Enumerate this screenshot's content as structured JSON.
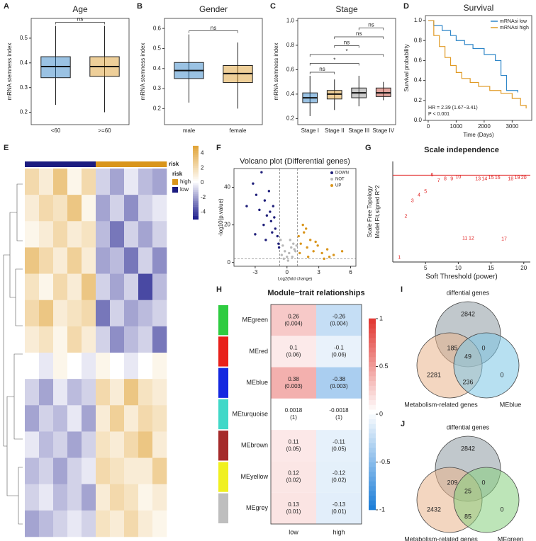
{
  "chart_data": [
    {
      "panel": "A",
      "type": "box",
      "title": "Age",
      "ylabel": "mRNA stemness index",
      "categories": [
        "<60",
        ">=60"
      ],
      "colors": [
        "#1f77c0",
        "#d9951c"
      ],
      "boxes": [
        {
          "min": 0.23,
          "q1": 0.34,
          "median": 0.385,
          "q3": 0.425,
          "max": 0.55
        },
        {
          "min": 0.2,
          "q1": 0.345,
          "median": 0.385,
          "q3": 0.425,
          "max": 0.55
        }
      ],
      "ylim": [
        0.15,
        0.58
      ],
      "yticks": [
        0.2,
        0.3,
        0.4,
        0.5
      ],
      "comparisons": [
        {
          "pair": [
            "<60",
            ">=60"
          ],
          "label": "ns"
        }
      ]
    },
    {
      "panel": "B",
      "type": "box",
      "title": "Gender",
      "ylabel": "mRNA stemness index",
      "categories": [
        "male",
        "female"
      ],
      "colors": [
        "#1f77c0",
        "#d9951c"
      ],
      "boxes": [
        {
          "min": 0.23,
          "q1": 0.35,
          "median": 0.39,
          "q3": 0.43,
          "max": 0.57
        },
        {
          "min": 0.2,
          "q1": 0.33,
          "median": 0.375,
          "q3": 0.415,
          "max": 0.53
        }
      ],
      "ylim": [
        0.12,
        0.65
      ],
      "yticks": [
        0.2,
        0.3,
        0.4,
        0.5,
        0.6
      ],
      "comparisons": [
        {
          "pair": [
            "male",
            "female"
          ],
          "label": "ns"
        }
      ]
    },
    {
      "panel": "C",
      "type": "box",
      "title": "Stage",
      "ylabel": "mRNA stemness index",
      "categories": [
        "Stage I",
        "Stage II",
        "Stage III",
        "Stage IV"
      ],
      "colors": [
        "#1f77c0",
        "#d9951c",
        "#8c8c8c",
        "#c0392b"
      ],
      "boxes": [
        {
          "min": 0.22,
          "q1": 0.33,
          "median": 0.37,
          "q3": 0.41,
          "max": 0.55
        },
        {
          "min": 0.27,
          "q1": 0.36,
          "median": 0.4,
          "q3": 0.43,
          "max": 0.52
        },
        {
          "min": 0.3,
          "q1": 0.37,
          "median": 0.41,
          "q3": 0.45,
          "max": 0.55
        },
        {
          "min": 0.35,
          "q1": 0.38,
          "median": 0.41,
          "q3": 0.45,
          "max": 0.5
        }
      ],
      "ylim": [
        0.15,
        1.02
      ],
      "yticks": [
        0.2,
        0.4,
        0.6,
        0.8,
        {
          "value": 1.0,
          "label": "1.0"
        }
      ],
      "comparisons": [
        {
          "pair": [
            "Stage I",
            "Stage II"
          ],
          "label": "ns"
        },
        {
          "pair": [
            "Stage I",
            "Stage III"
          ],
          "label": "*"
        },
        {
          "pair": [
            "Stage I",
            "Stage IV"
          ],
          "label": "*"
        },
        {
          "pair": [
            "Stage II",
            "Stage III"
          ],
          "label": "ns"
        },
        {
          "pair": [
            "Stage II",
            "Stage IV"
          ],
          "label": "ns"
        },
        {
          "pair": [
            "Stage III",
            "Stage IV"
          ],
          "label": "ns"
        }
      ]
    },
    {
      "panel": "D",
      "type": "survival",
      "title": "Survival",
      "xlabel": "Time (Days)",
      "ylabel": "Survival probability",
      "series": [
        {
          "name": "mRNAsi low",
          "color": "#2f86c8",
          "x": [
            0,
            200,
            500,
            800,
            1000,
            1300,
            1600,
            2000,
            2400,
            2600,
            2800,
            3200
          ],
          "values": [
            1,
            0.95,
            0.9,
            0.85,
            0.8,
            0.76,
            0.72,
            0.66,
            0.6,
            0.45,
            0.3,
            0.28
          ]
        },
        {
          "name": "mRNAsi high",
          "color": "#e09a25",
          "x": [
            0,
            200,
            400,
            600,
            800,
            1000,
            1200,
            1500,
            1800,
            2200,
            2600,
            3000,
            3300,
            3500
          ],
          "values": [
            1,
            0.85,
            0.74,
            0.63,
            0.55,
            0.48,
            0.42,
            0.38,
            0.34,
            0.3,
            0.27,
            0.22,
            0.15,
            0.12
          ]
        }
      ],
      "xlim": [
        -100,
        3700
      ],
      "xticks": [
        0,
        1000,
        2000,
        3000
      ],
      "ylim": [
        0,
        1.05
      ],
      "yticks": [
        {
          "value": 0,
          "label": "0.0"
        },
        0.2,
        0.4,
        0.6,
        0.8,
        {
          "value": 1,
          "label": "1.0"
        }
      ],
      "annotations": [
        "HR = 2.39 (1.67−3.41)",
        "P < 0.001"
      ]
    },
    {
      "panel": "E",
      "type": "heatmap",
      "legend_title": "risk",
      "legend": [
        {
          "name": "high",
          "color": "#d9951c"
        },
        {
          "name": "low",
          "color": "#1c1c80"
        }
      ],
      "risk": [
        "low",
        "low",
        "low",
        "low",
        "low",
        "high",
        "high",
        "high",
        "high",
        "high"
      ],
      "clim": [
        -5,
        5
      ],
      "colors": [
        "#1c1c8c",
        "#ffffff",
        "#e0a030"
      ],
      "colorbar_ticks": [
        4,
        2,
        0,
        -2,
        -4
      ],
      "values": [
        [
          2,
          1,
          3,
          0.5,
          2,
          -1,
          -2,
          -0.5,
          -1.5,
          -2
        ],
        [
          1,
          2,
          1.5,
          3,
          0.5,
          -2,
          -1,
          -2.5,
          -1,
          -0.5
        ],
        [
          0.5,
          1,
          2,
          1,
          1.5,
          -1.5,
          -3,
          -1,
          -2,
          -1
        ],
        [
          3,
          2,
          1,
          2.5,
          1,
          -2,
          -1.5,
          -3,
          -1,
          -2.5
        ],
        [
          1.5,
          0.5,
          2,
          1,
          3,
          -1,
          -2,
          -1,
          -4,
          -1.5
        ],
        [
          2,
          3,
          1,
          1.5,
          2,
          -3,
          -1,
          -2,
          -1.5,
          -1
        ],
        [
          1,
          1.5,
          0.5,
          2,
          1,
          -1,
          -2.5,
          -1.5,
          -1,
          -3
        ],
        [
          0,
          -0.5,
          0.5,
          0,
          -0.5,
          0.5,
          0,
          -0.5,
          0,
          0.5
        ],
        [
          -1,
          -2,
          -0.5,
          -1.5,
          -1,
          2,
          1,
          3,
          1.5,
          1
        ],
        [
          -2,
          -1,
          -1.5,
          -0.5,
          -2,
          1,
          2.5,
          1,
          2,
          1.5
        ],
        [
          -0.5,
          -1.5,
          -1,
          -2,
          -1,
          1.5,
          1,
          2,
          3,
          1
        ],
        [
          -1.5,
          -1,
          -2,
          -1,
          -0.5,
          2,
          1.5,
          1,
          1,
          2.5
        ],
        [
          -1,
          -0.5,
          -1.5,
          -1,
          -2,
          1,
          2,
          1.5,
          0.5,
          1
        ],
        [
          -2,
          -1.5,
          -1,
          -0.5,
          -1,
          1.5,
          1,
          2,
          1,
          0.5
        ]
      ]
    },
    {
      "panel": "F",
      "type": "volcano",
      "title": "Volcano plot (Differential genes)",
      "xlabel": "Log2(fold change)",
      "ylabel": "-log10(p.value)",
      "series": [
        {
          "name": "DOWN",
          "color": "#1f1f7a",
          "x": [
            -3.8,
            -3.2,
            -2.9,
            -2.6,
            -2.4,
            -2.1,
            -1.9,
            -1.7,
            -1.5,
            -1.3,
            -1.1,
            -0.9,
            -0.8,
            -2.2,
            -1.6,
            -1.2,
            -0.75,
            -3.0,
            -2.0,
            -1.4
          ],
          "values": [
            30,
            42,
            36,
            28,
            48,
            33,
            25,
            38,
            22,
            30,
            18,
            14,
            10,
            20,
            27,
            24,
            8,
            15,
            12,
            16
          ]
        },
        {
          "name": "NOT",
          "color": "#b8b8b8",
          "x": [
            -0.6,
            -0.4,
            -0.2,
            0,
            0.2,
            0.4,
            0.6,
            0.8,
            -0.3,
            0.1,
            0.5,
            -0.5,
            0.3,
            0.7,
            0.9
          ],
          "values": [
            12,
            9,
            6,
            3,
            5,
            8,
            10,
            6,
            2,
            1,
            3,
            4,
            12,
            7,
            9
          ]
        },
        {
          "name": "UP",
          "color": "#d9951c",
          "x": [
            1.1,
            1.3,
            1.6,
            1.9,
            2.2,
            2.5,
            2.9,
            3.3,
            3.8,
            4.4,
            5.2,
            1.5,
            2.0,
            2.7,
            3.5,
            1.2,
            4.0,
            1.8
          ],
          "values": [
            14,
            10,
            16,
            8,
            12,
            6,
            9,
            5,
            7,
            4,
            6,
            20,
            3,
            11,
            2,
            5,
            3,
            18
          ]
        }
      ],
      "xlim": [
        -5,
        6.5
      ],
      "xticks": [
        -3,
        0,
        3,
        6
      ],
      "ylim": [
        -2,
        50
      ],
      "yticks": [
        0,
        20,
        40
      ],
      "thresholds": {
        "x": [
          -0.7,
          1
        ],
        "y": 2
      }
    },
    {
      "panel": "G",
      "type": "scale",
      "title": "Scale independence",
      "xlabel": "Soft Threshold (power)",
      "ylabel": [
        "Scale Free Topology",
        "Model Fit,signed R^2"
      ],
      "color": "#e02020",
      "x": [
        1,
        2,
        3,
        4,
        5,
        6,
        7,
        8,
        9,
        10,
        11,
        12,
        13,
        14,
        15,
        16,
        17,
        18,
        19,
        20
      ],
      "values": [
        0.0,
        0.45,
        0.62,
        0.68,
        0.72,
        0.9,
        0.84,
        0.86,
        0.86,
        0.88,
        0.21,
        0.21,
        0.86,
        0.86,
        0.87,
        0.87,
        0.2,
        0.86,
        0.87,
        0.87
      ],
      "xlim": [
        0,
        21
      ],
      "xticks": [
        5,
        10,
        15,
        20
      ],
      "ylim": [
        -0.05,
        1.05
      ],
      "hline": 0.9
    },
    {
      "panel": "H",
      "type": "matrix",
      "title": "Module−trait relationships",
      "rows": [
        "MEgreen",
        "MEred",
        "MEblue",
        "MEturquoise",
        "MEbrown",
        "MEyellow",
        "MEgrey"
      ],
      "row_colors": [
        "#2ecc40",
        "#e8201a",
        "#1428e0",
        "#40d8c8",
        "#a52a2a",
        "#f0f020",
        "#bebebe"
      ],
      "columns": [
        "low",
        "high"
      ],
      "values": [
        [
          0.26,
          -0.26
        ],
        [
          0.1,
          -0.1
        ],
        [
          0.38,
          -0.38
        ],
        [
          0.0018,
          -0.0018
        ],
        [
          0.11,
          -0.11
        ],
        [
          0.12,
          -0.12
        ],
        [
          0.13,
          -0.13
        ]
      ],
      "p_values": [
        [
          0.004,
          0.004
        ],
        [
          0.06,
          0.06
        ],
        [
          0.003,
          0.003
        ],
        [
          1,
          1
        ],
        [
          0.05,
          0.05
        ],
        [
          0.02,
          0.02
        ],
        [
          0.01,
          0.01
        ]
      ],
      "p_labels": [
        [
          "(0.004)",
          "(0.004)"
        ],
        [
          "(0.06)",
          "(0.06)"
        ],
        [
          "(0.003)",
          "(0.003)"
        ],
        [
          "(1)",
          "(1)"
        ],
        [
          "(0.05)",
          "(0.05)"
        ],
        [
          "(0.02)",
          "(0.02)"
        ],
        [
          "(0.01)",
          "(0.01)"
        ]
      ],
      "clim": [
        -1,
        1
      ],
      "colors": [
        "#1e7fd8",
        "#ffffff",
        "#e0302a"
      ],
      "colorbar_ticks": [
        1,
        0.5,
        0,
        -0.5,
        -1
      ]
    },
    {
      "panel": "I",
      "type": "venn",
      "sets": [
        {
          "name": "diffential genes",
          "color": "#8e9aa3"
        },
        {
          "name": "Metabolism-related genes",
          "color": "#eab48c"
        },
        {
          "name": "MEblue",
          "color": "#7cc6e6"
        }
      ],
      "regions": [
        {
          "sets": [
            "diffential genes"
          ],
          "count": 2842
        },
        {
          "sets": [
            "diffential genes",
            "Metabolism-related genes"
          ],
          "count": 185
        },
        {
          "sets": [
            "diffential genes",
            "Metabolism-related genes",
            "MEblue"
          ],
          "count": 49
        },
        {
          "sets": [
            "diffential genes",
            "MEblue"
          ],
          "count": 0
        },
        {
          "sets": [
            "Metabolism-related genes"
          ],
          "count": 2281
        },
        {
          "sets": [
            "Metabolism-related genes",
            "MEblue"
          ],
          "count": 236
        },
        {
          "sets": [
            "MEblue"
          ],
          "count": 0
        }
      ]
    },
    {
      "panel": "J",
      "type": "venn",
      "sets": [
        {
          "name": "diffential genes",
          "color": "#8e9aa3"
        },
        {
          "name": "Metabolism-related genes",
          "color": "#eab48c"
        },
        {
          "name": "MEgreen",
          "color": "#86d07e"
        }
      ],
      "regions": [
        {
          "sets": [
            "diffential genes"
          ],
          "count": 2842
        },
        {
          "sets": [
            "diffential genes",
            "Metabolism-related genes"
          ],
          "count": 209
        },
        {
          "sets": [
            "diffential genes",
            "Metabolism-related genes",
            "MEgreen"
          ],
          "count": 25
        },
        {
          "sets": [
            "diffential genes",
            "MEgreen"
          ],
          "count": 0
        },
        {
          "sets": [
            "Metabolism-related genes"
          ],
          "count": 2432
        },
        {
          "sets": [
            "Metabolism-related genes",
            "MEgreen"
          ],
          "count": 85
        },
        {
          "sets": [
            "MEgreen"
          ],
          "count": 0
        }
      ]
    }
  ]
}
